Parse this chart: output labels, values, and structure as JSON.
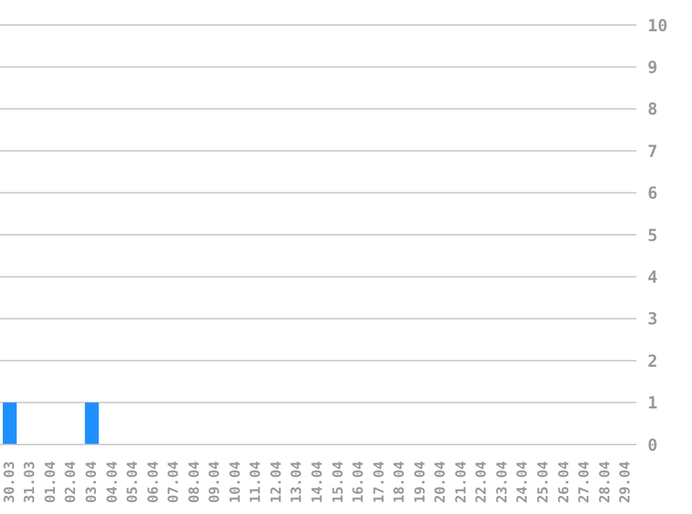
{
  "chart_data": {
    "type": "bar",
    "categories": [
      "30.03",
      "31.03",
      "01.04",
      "02.04",
      "03.04",
      "04.04",
      "05.04",
      "06.04",
      "07.04",
      "08.04",
      "09.04",
      "10.04",
      "11.04",
      "12.04",
      "13.04",
      "14.04",
      "15.04",
      "16.04",
      "17.04",
      "18.04",
      "19.04",
      "20.04",
      "21.04",
      "22.04",
      "23.04",
      "24.04",
      "25.04",
      "26.04",
      "27.04",
      "28.04",
      "29.04"
    ],
    "values": [
      1,
      0,
      0,
      0,
      1,
      0,
      0,
      0,
      0,
      0,
      0,
      0,
      0,
      0,
      0,
      0,
      0,
      0,
      0,
      0,
      0,
      0,
      0,
      0,
      0,
      0,
      0,
      0,
      0,
      0,
      0
    ],
    "color": "#1e90ff",
    "ylim": [
      0,
      10
    ],
    "yticks": [
      0,
      1,
      2,
      3,
      4,
      5,
      6,
      7,
      8,
      9,
      10
    ],
    "grid": "y"
  }
}
